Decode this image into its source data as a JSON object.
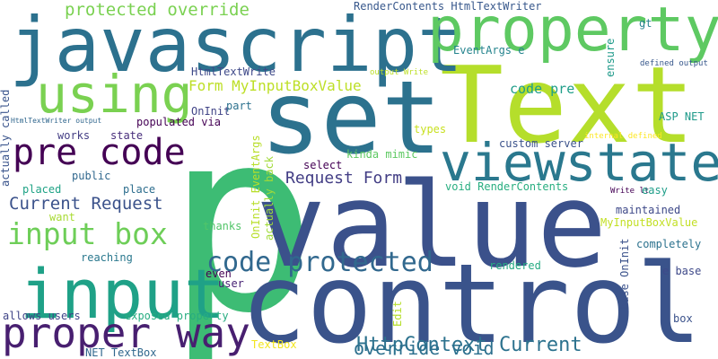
{
  "background": "#ffffff",
  "words": [
    {
      "text": "p",
      "color": "#3dbc74"
    },
    {
      "text": "value",
      "color": "#3b518b"
    },
    {
      "text": "control",
      "color": "#3a538b"
    },
    {
      "text": "Text",
      "color": "#b5de2b"
    },
    {
      "text": "set",
      "color": "#2c728e"
    },
    {
      "text": "javascript",
      "color": "#2c718e"
    },
    {
      "text": "property",
      "color": "#5ec962"
    },
    {
      "text": "input",
      "color": "#1fa187"
    },
    {
      "text": "viewstate",
      "color": "#2a788e"
    },
    {
      "text": "using",
      "color": "#7ad151"
    },
    {
      "text": "proper way",
      "color": "#481f70"
    },
    {
      "text": "pre code",
      "color": "#440154"
    },
    {
      "text": "code protected",
      "color": "#31688e"
    },
    {
      "text": "input box",
      "color": "#6ece58"
    },
    {
      "text": "HttpContext Current",
      "color": "#2c728e"
    },
    {
      "text": "override void",
      "color": "#2d708e"
    },
    {
      "text": "protected override",
      "color": "#7ad151"
    },
    {
      "text": "Current Request",
      "color": "#3b528b"
    },
    {
      "text": "Request Form",
      "color": "#433e85"
    },
    {
      "text": "Form MyInputBoxValue",
      "color": "#bddf26"
    },
    {
      "text": "code pre",
      "color": "#1f9e89"
    },
    {
      "text": "HtmlTextWrite",
      "color": "#3e4989"
    },
    {
      "text": "EventArgs e",
      "color": "#25848e"
    },
    {
      "text": "RenderContents HtmlTextWriter",
      "color": "#38588c"
    },
    {
      "text": "ensure",
      "color": "#1f9a8a"
    },
    {
      "text": "gt",
      "color": "#26828e"
    },
    {
      "text": "defined output",
      "color": "#38588c"
    },
    {
      "text": "OnInit",
      "color": "#414487"
    },
    {
      "text": "part",
      "color": "#2c718e"
    },
    {
      "text": "ASP NET",
      "color": "#1f9a8a"
    },
    {
      "text": "populated via",
      "color": "#440154"
    },
    {
      "text": "types",
      "color": "#c8e020"
    },
    {
      "text": "works",
      "color": "#433d84"
    },
    {
      "text": "state",
      "color": "#472d7b"
    },
    {
      "text": "HtmlTextWriter output",
      "color": "#31678e"
    },
    {
      "text": "actually called",
      "color": "#3a548c"
    },
    {
      "text": "custom server",
      "color": "#3b528b"
    },
    {
      "text": "internal defined",
      "color": "#fde725"
    },
    {
      "text": "output Write",
      "color": "#bddf26"
    },
    {
      "text": "public",
      "color": "#31688e"
    },
    {
      "text": "placed",
      "color": "#20a386"
    },
    {
      "text": "place",
      "color": "#2e6e8e"
    },
    {
      "text": "want",
      "color": "#a8db34"
    },
    {
      "text": "select",
      "color": "#440154"
    },
    {
      "text": "kinda mimic",
      "color": "#5ec962"
    },
    {
      "text": "void RenderContents",
      "color": "#28ae80"
    },
    {
      "text": "Write lt",
      "color": "#440154"
    },
    {
      "text": "easy",
      "color": "#1f9e89"
    },
    {
      "text": "thanks",
      "color": "#52c569"
    },
    {
      "text": "maintained",
      "color": "#3e4989"
    },
    {
      "text": "MyInputBoxValue",
      "color": "#c2df23"
    },
    {
      "text": "actually back",
      "color": "#a0da39"
    },
    {
      "text": "OnInit EventArgs",
      "color": "#b8de29"
    },
    {
      "text": "completely",
      "color": "#2c728e"
    },
    {
      "text": "reaching",
      "color": "#2a788e"
    },
    {
      "text": "rendered",
      "color": "#25ab82"
    },
    {
      "text": "e base",
      "color": "#3e4989"
    },
    {
      "text": "even",
      "color": "#440154"
    },
    {
      "text": "user",
      "color": "#482475"
    },
    {
      "text": "base OnInit",
      "color": "#3b528b"
    },
    {
      "text": "allows users",
      "color": "#404588"
    },
    {
      "text": "exposed property",
      "color": "#27ad81"
    },
    {
      "text": "Edit",
      "color": "#b5de2b"
    },
    {
      "text": "box",
      "color": "#3b528b"
    },
    {
      "text": "TextBox",
      "color": "#f1e51d"
    },
    {
      "text": "NET TextBox",
      "color": "#31688e"
    }
  ]
}
